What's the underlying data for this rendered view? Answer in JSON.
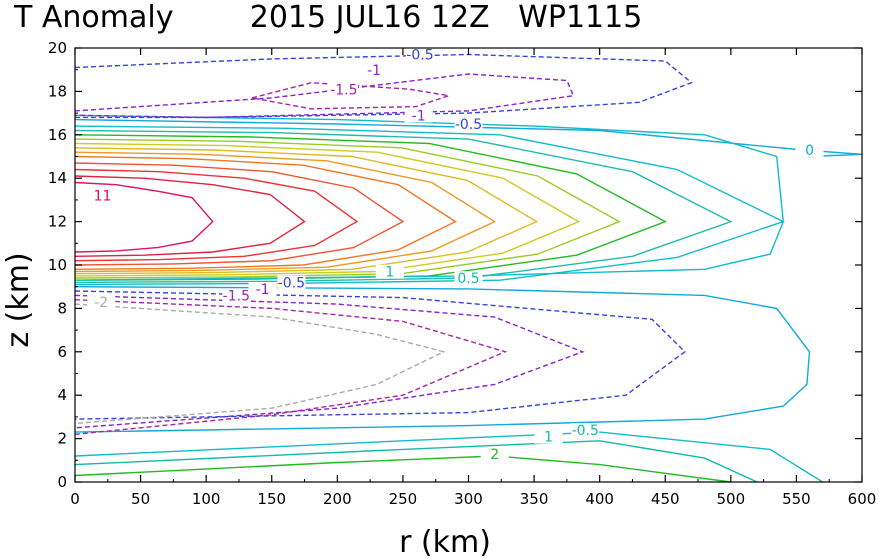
{
  "chart_data": {
    "type": "contour",
    "title": "T Anomaly        2015 JUL16 12Z   WP1115",
    "xlabel": "r (km)",
    "ylabel": "z (km)",
    "xlim": [
      0,
      600
    ],
    "ylim": [
      0,
      20
    ],
    "xticks": [
      "0",
      "50",
      "100",
      "150",
      "200",
      "250",
      "300",
      "350",
      "400",
      "450",
      "500",
      "550",
      "600"
    ],
    "yticks": [
      "0",
      "2",
      "4",
      "6",
      "8",
      "10",
      "12",
      "14",
      "16",
      "18",
      "20"
    ],
    "grid": false,
    "legend": "none",
    "contour_interval": 0.5,
    "negative_contours_dashed": true,
    "contour_labels": [
      {
        "text": "-0.5",
        "r": 263,
        "z": 19.6,
        "color": "#3344dd"
      },
      {
        "text": "-1",
        "r": 228,
        "z": 18.9,
        "color": "#8822cc"
      },
      {
        "text": "-1.5",
        "r": 205,
        "z": 18.0,
        "color": "#aa22aa"
      },
      {
        "text": "-1",
        "r": 262,
        "z": 16.8,
        "color": "#8822cc"
      },
      {
        "text": "-0.5",
        "r": 300,
        "z": 16.4,
        "color": "#3344dd"
      },
      {
        "text": "0",
        "r": 560,
        "z": 15.2,
        "color": "#11aadd"
      },
      {
        "text": "1",
        "r": 240,
        "z": 9.6,
        "color": "#11bbaa"
      },
      {
        "text": "0.5",
        "r": 300,
        "z": 9.3,
        "color": "#11bbaa"
      },
      {
        "text": "-0.5",
        "r": 165,
        "z": 9.1,
        "color": "#3344dd"
      },
      {
        "text": "-1",
        "r": 143,
        "z": 8.8,
        "color": "#8822cc"
      },
      {
        "text": "-1.5",
        "r": 123,
        "z": 8.5,
        "color": "#aa22aa"
      },
      {
        "text": "-2",
        "r": 20,
        "z": 8.2,
        "color": "#aaaaaa"
      },
      {
        "text": "11",
        "r": 21,
        "z": 13.1,
        "color": "#dd1155"
      },
      {
        "text": "-0.5",
        "r": 389,
        "z": 2.3,
        "color": "#11bbaa"
      },
      {
        "text": "1",
        "r": 361,
        "z": 2.0,
        "color": "#11bbaa"
      },
      {
        "text": "2",
        "r": 320,
        "z": 1.2,
        "color": "#22bb22"
      }
    ],
    "warm_core": {
      "levels": [
        0.5,
        1,
        2,
        3,
        4,
        5,
        6,
        7,
        8,
        9,
        10,
        11
      ],
      "max_z_km": 12,
      "max_anomaly": 11
    },
    "cold_region": {
      "levels": [
        -0.5,
        -1,
        -1.5,
        -2
      ],
      "center_z_km": 6
    }
  }
}
